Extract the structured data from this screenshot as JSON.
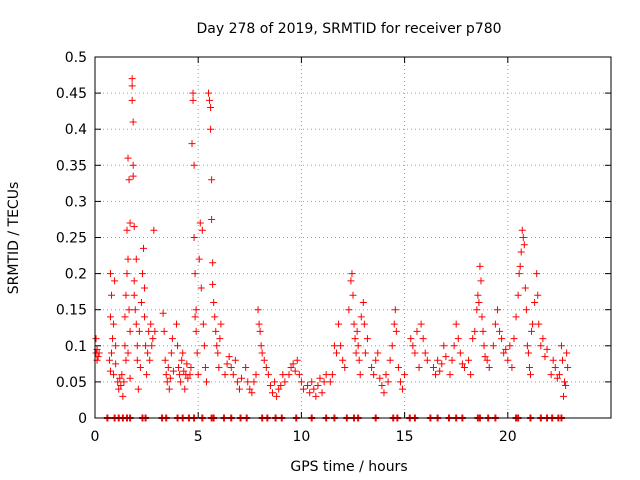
{
  "chart_data": {
    "type": "scatter",
    "title": "Day 278 of 2019, SRMTID for receiver p780",
    "xlabel": "GPS time / hours",
    "ylabel": "SRMTID / TECUs",
    "xlim": [
      0,
      25
    ],
    "ylim": [
      0,
      0.5
    ],
    "xticks": [
      0,
      5,
      10,
      15,
      20
    ],
    "xtick_labels": [
      "0",
      "5",
      "10",
      "15",
      "20"
    ],
    "yticks": [
      0,
      0.05,
      0.1,
      0.15,
      0.2,
      0.25,
      0.3,
      0.35,
      0.4,
      0.45,
      0.5
    ],
    "ytick_labels": [
      "0",
      "0.05",
      "0.1",
      "0.15",
      "0.2",
      "0.25",
      "0.3",
      "0.35",
      "0.4",
      "0.45",
      "0.5"
    ],
    "grid": true,
    "marker": "+",
    "color": "#ff0000",
    "points": [
      [
        0.05,
        0.11
      ],
      [
        0.05,
        0.09
      ],
      [
        0.1,
        0.08
      ],
      [
        0.1,
        0.095
      ],
      [
        0.15,
        0.085
      ],
      [
        0.2,
        0.09
      ],
      [
        0.7,
        0.08
      ],
      [
        0.75,
        0.065
      ],
      [
        0.75,
        0.14
      ],
      [
        0.75,
        0.2
      ],
      [
        0.8,
        0.09
      ],
      [
        0.8,
        0.17
      ],
      [
        0.85,
        0.11
      ],
      [
        0.9,
        0.06
      ],
      [
        0.9,
        0.13
      ],
      [
        0.95,
        0.19
      ],
      [
        1.0,
        0.1
      ],
      [
        1.0,
        0.075
      ],
      [
        1.1,
        0.05
      ],
      [
        1.15,
        0.04
      ],
      [
        1.2,
        0.055
      ],
      [
        1.25,
        0.045
      ],
      [
        1.3,
        0.06
      ],
      [
        1.35,
        0.03
      ],
      [
        1.4,
        0.05
      ],
      [
        1.45,
        0.1
      ],
      [
        1.45,
        0.14
      ],
      [
        1.5,
        0.08
      ],
      [
        1.5,
        0.17
      ],
      [
        1.55,
        0.26
      ],
      [
        1.55,
        0.2
      ],
      [
        1.6,
        0.09
      ],
      [
        1.6,
        0.22
      ],
      [
        1.6,
        0.36
      ],
      [
        1.65,
        0.33
      ],
      [
        1.65,
        0.15
      ],
      [
        1.7,
        0.12
      ],
      [
        1.7,
        0.27
      ],
      [
        1.7,
        0.055
      ],
      [
        1.8,
        0.47
      ],
      [
        1.8,
        0.46
      ],
      [
        1.8,
        0.44
      ],
      [
        1.85,
        0.35
      ],
      [
        1.85,
        0.41
      ],
      [
        1.85,
        0.335
      ],
      [
        1.9,
        0.17
      ],
      [
        1.9,
        0.265
      ],
      [
        1.9,
        0.19
      ],
      [
        1.95,
        0.15
      ],
      [
        2.0,
        0.22
      ],
      [
        2.0,
        0.13
      ],
      [
        2.05,
        0.1
      ],
      [
        2.05,
        0.08
      ],
      [
        2.1,
        0.04
      ],
      [
        2.15,
        0.12
      ],
      [
        2.2,
        0.07
      ],
      [
        2.25,
        0.16
      ],
      [
        2.3,
        0.2
      ],
      [
        2.35,
        0.235
      ],
      [
        2.4,
        0.18
      ],
      [
        2.4,
        0.14
      ],
      [
        2.45,
        0.1
      ],
      [
        2.5,
        0.06
      ],
      [
        2.55,
        0.09
      ],
      [
        2.6,
        0.12
      ],
      [
        2.65,
        0.08
      ],
      [
        2.7,
        0.13
      ],
      [
        2.75,
        0.1
      ],
      [
        2.8,
        0.11
      ],
      [
        2.85,
        0.26
      ],
      [
        2.9,
        0.12
      ],
      [
        3.3,
        0.145
      ],
      [
        3.35,
        0.12
      ],
      [
        3.4,
        0.08
      ],
      [
        3.45,
        0.06
      ],
      [
        3.5,
        0.05
      ],
      [
        3.55,
        0.07
      ],
      [
        3.6,
        0.04
      ],
      [
        3.65,
        0.055
      ],
      [
        3.7,
        0.09
      ],
      [
        3.75,
        0.11
      ],
      [
        3.8,
        0.065
      ],
      [
        3.95,
        0.13
      ],
      [
        4.0,
        0.1
      ],
      [
        4.05,
        0.07
      ],
      [
        4.1,
        0.06
      ],
      [
        4.15,
        0.05
      ],
      [
        4.2,
        0.08
      ],
      [
        4.25,
        0.09
      ],
      [
        4.3,
        0.065
      ],
      [
        4.35,
        0.04
      ],
      [
        4.4,
        0.06
      ],
      [
        4.45,
        0.075
      ],
      [
        4.5,
        0.055
      ],
      [
        4.6,
        0.06
      ],
      [
        4.65,
        0.07
      ],
      [
        4.7,
        0.38
      ],
      [
        4.75,
        0.45
      ],
      [
        4.75,
        0.44
      ],
      [
        4.8,
        0.35
      ],
      [
        4.8,
        0.25
      ],
      [
        4.85,
        0.2
      ],
      [
        4.85,
        0.14
      ],
      [
        4.9,
        0.15
      ],
      [
        4.9,
        0.12
      ],
      [
        4.95,
        0.09
      ],
      [
        5.0,
        0.06
      ],
      [
        5.05,
        0.22
      ],
      [
        5.1,
        0.27
      ],
      [
        5.15,
        0.18
      ],
      [
        5.2,
        0.26
      ],
      [
        5.25,
        0.13
      ],
      [
        5.3,
        0.1
      ],
      [
        5.35,
        0.07
      ],
      [
        5.4,
        0.05
      ],
      [
        5.5,
        0.45
      ],
      [
        5.55,
        0.44
      ],
      [
        5.6,
        0.43
      ],
      [
        5.6,
        0.4
      ],
      [
        5.65,
        0.33
      ],
      [
        5.65,
        0.275
      ],
      [
        5.7,
        0.215
      ],
      [
        5.7,
        0.185
      ],
      [
        5.75,
        0.16
      ],
      [
        5.8,
        0.14
      ],
      [
        5.85,
        0.12
      ],
      [
        5.9,
        0.1
      ],
      [
        5.95,
        0.09
      ],
      [
        6.0,
        0.07
      ],
      [
        6.05,
        0.11
      ],
      [
        6.1,
        0.13
      ],
      [
        6.3,
        0.06
      ],
      [
        6.4,
        0.075
      ],
      [
        6.5,
        0.085
      ],
      [
        6.6,
        0.07
      ],
      [
        6.7,
        0.06
      ],
      [
        6.8,
        0.08
      ],
      [
        6.9,
        0.05
      ],
      [
        7.0,
        0.04
      ],
      [
        7.1,
        0.055
      ],
      [
        7.3,
        0.07
      ],
      [
        7.4,
        0.05
      ],
      [
        7.5,
        0.04
      ],
      [
        7.6,
        0.035
      ],
      [
        7.7,
        0.05
      ],
      [
        7.8,
        0.06
      ],
      [
        7.9,
        0.15
      ],
      [
        7.95,
        0.13
      ],
      [
        8.0,
        0.12
      ],
      [
        8.05,
        0.1
      ],
      [
        8.1,
        0.09
      ],
      [
        8.2,
        0.08
      ],
      [
        8.3,
        0.07
      ],
      [
        8.4,
        0.06
      ],
      [
        8.5,
        0.045
      ],
      [
        8.6,
        0.035
      ],
      [
        8.7,
        0.05
      ],
      [
        8.8,
        0.03
      ],
      [
        8.9,
        0.04
      ],
      [
        9.0,
        0.045
      ],
      [
        9.1,
        0.06
      ],
      [
        9.2,
        0.05
      ],
      [
        9.4,
        0.06
      ],
      [
        9.5,
        0.07
      ],
      [
        9.6,
        0.075
      ],
      [
        9.7,
        0.065
      ],
      [
        9.8,
        0.08
      ],
      [
        9.9,
        0.06
      ],
      [
        10.0,
        0.05
      ],
      [
        10.1,
        0.04
      ],
      [
        10.3,
        0.045
      ],
      [
        10.4,
        0.035
      ],
      [
        10.5,
        0.05
      ],
      [
        10.6,
        0.04
      ],
      [
        10.7,
        0.03
      ],
      [
        10.8,
        0.045
      ],
      [
        10.9,
        0.055
      ],
      [
        11.0,
        0.035
      ],
      [
        11.1,
        0.05
      ],
      [
        11.2,
        0.06
      ],
      [
        11.4,
        0.05
      ],
      [
        11.5,
        0.06
      ],
      [
        11.6,
        0.1
      ],
      [
        11.7,
        0.09
      ],
      [
        11.8,
        0.13
      ],
      [
        11.9,
        0.1
      ],
      [
        12.0,
        0.08
      ],
      [
        12.1,
        0.07
      ],
      [
        12.3,
        0.15
      ],
      [
        12.4,
        0.19
      ],
      [
        12.45,
        0.2
      ],
      [
        12.5,
        0.17
      ],
      [
        12.55,
        0.13
      ],
      [
        12.6,
        0.11
      ],
      [
        12.65,
        0.09
      ],
      [
        12.7,
        0.12
      ],
      [
        12.75,
        0.1
      ],
      [
        12.8,
        0.08
      ],
      [
        12.85,
        0.06
      ],
      [
        12.9,
        0.14
      ],
      [
        13.0,
        0.16
      ],
      [
        13.05,
        0.13
      ],
      [
        13.1,
        0.09
      ],
      [
        13.2,
        0.11
      ],
      [
        13.4,
        0.07
      ],
      [
        13.5,
        0.06
      ],
      [
        13.6,
        0.08
      ],
      [
        13.7,
        0.09
      ],
      [
        13.8,
        0.055
      ],
      [
        13.9,
        0.045
      ],
      [
        14.0,
        0.035
      ],
      [
        14.1,
        0.06
      ],
      [
        14.2,
        0.05
      ],
      [
        14.3,
        0.08
      ],
      [
        14.4,
        0.1
      ],
      [
        14.5,
        0.13
      ],
      [
        14.55,
        0.15
      ],
      [
        14.6,
        0.12
      ],
      [
        14.7,
        0.07
      ],
      [
        14.8,
        0.05
      ],
      [
        14.9,
        0.04
      ],
      [
        15.0,
        0.06
      ],
      [
        15.3,
        0.11
      ],
      [
        15.4,
        0.1
      ],
      [
        15.5,
        0.09
      ],
      [
        15.6,
        0.12
      ],
      [
        15.7,
        0.07
      ],
      [
        15.8,
        0.13
      ],
      [
        15.9,
        0.11
      ],
      [
        16.0,
        0.09
      ],
      [
        16.1,
        0.08
      ],
      [
        16.4,
        0.07
      ],
      [
        16.5,
        0.06
      ],
      [
        16.6,
        0.08
      ],
      [
        16.7,
        0.065
      ],
      [
        16.8,
        0.075
      ],
      [
        16.9,
        0.1
      ],
      [
        17.0,
        0.085
      ],
      [
        17.2,
        0.06
      ],
      [
        17.3,
        0.08
      ],
      [
        17.4,
        0.1
      ],
      [
        17.5,
        0.13
      ],
      [
        17.6,
        0.11
      ],
      [
        17.7,
        0.09
      ],
      [
        17.8,
        0.075
      ],
      [
        17.9,
        0.07
      ],
      [
        18.1,
        0.08
      ],
      [
        18.2,
        0.06
      ],
      [
        18.3,
        0.11
      ],
      [
        18.4,
        0.12
      ],
      [
        18.5,
        0.15
      ],
      [
        18.55,
        0.17
      ],
      [
        18.6,
        0.16
      ],
      [
        18.65,
        0.21
      ],
      [
        18.7,
        0.19
      ],
      [
        18.75,
        0.14
      ],
      [
        18.8,
        0.12
      ],
      [
        18.85,
        0.1
      ],
      [
        18.9,
        0.085
      ],
      [
        19.0,
        0.08
      ],
      [
        19.1,
        0.07
      ],
      [
        19.3,
        0.1
      ],
      [
        19.4,
        0.13
      ],
      [
        19.5,
        0.15
      ],
      [
        19.6,
        0.12
      ],
      [
        19.7,
        0.11
      ],
      [
        19.8,
        0.09
      ],
      [
        19.9,
        0.095
      ],
      [
        20.0,
        0.08
      ],
      [
        20.1,
        0.1
      ],
      [
        20.2,
        0.07
      ],
      [
        20.3,
        0.11
      ],
      [
        20.4,
        0.14
      ],
      [
        20.5,
        0.17
      ],
      [
        20.55,
        0.2
      ],
      [
        20.6,
        0.21
      ],
      [
        20.65,
        0.23
      ],
      [
        20.7,
        0.26
      ],
      [
        20.75,
        0.25
      ],
      [
        20.8,
        0.24
      ],
      [
        20.85,
        0.18
      ],
      [
        20.9,
        0.15
      ],
      [
        20.95,
        0.1
      ],
      [
        21.0,
        0.09
      ],
      [
        21.05,
        0.07
      ],
      [
        21.1,
        0.06
      ],
      [
        21.15,
        0.12
      ],
      [
        21.2,
        0.13
      ],
      [
        21.3,
        0.16
      ],
      [
        21.4,
        0.2
      ],
      [
        21.45,
        0.17
      ],
      [
        21.5,
        0.13
      ],
      [
        21.6,
        0.1
      ],
      [
        21.7,
        0.11
      ],
      [
        21.8,
        0.085
      ],
      [
        21.9,
        0.095
      ],
      [
        22.1,
        0.06
      ],
      [
        22.2,
        0.08
      ],
      [
        22.3,
        0.07
      ],
      [
        22.4,
        0.055
      ],
      [
        22.5,
        0.06
      ],
      [
        22.6,
        0.1
      ],
      [
        22.65,
        0.08
      ],
      [
        22.7,
        0.03
      ],
      [
        22.75,
        0.05
      ],
      [
        22.8,
        0.045
      ],
      [
        22.85,
        0.09
      ],
      [
        22.9,
        0.07
      ]
    ],
    "zero_points_x": [
      0.6,
      0.95,
      1.15,
      1.35,
      1.55,
      1.7,
      2.3,
      2.45,
      3.25,
      3.45,
      4.0,
      4.25,
      4.55,
      4.8,
      5.2,
      5.65,
      5.75,
      6.25,
      6.6,
      7.05,
      7.35,
      8.1,
      8.35,
      8.75,
      9.05,
      9.75,
      10.5,
      11.2,
      11.6,
      12.2,
      12.55,
      12.75,
      13.6,
      14.45,
      14.65,
      15.25,
      15.5,
      16.25,
      16.6,
      17.15,
      17.5,
      17.8,
      18.55,
      18.65,
      19.05,
      19.4,
      20.4,
      20.5,
      21.1,
      21.6,
      21.9,
      22.15,
      22.45,
      22.6
    ]
  }
}
